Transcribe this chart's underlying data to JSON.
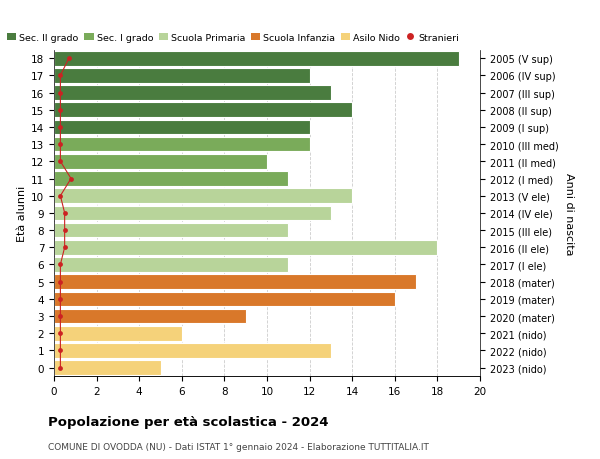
{
  "ages": [
    18,
    17,
    16,
    15,
    14,
    13,
    12,
    11,
    10,
    9,
    8,
    7,
    6,
    5,
    4,
    3,
    2,
    1,
    0
  ],
  "years": [
    "2005 (V sup)",
    "2006 (IV sup)",
    "2007 (III sup)",
    "2008 (II sup)",
    "2009 (I sup)",
    "2010 (III med)",
    "2011 (II med)",
    "2012 (I med)",
    "2013 (V ele)",
    "2014 (IV ele)",
    "2015 (III ele)",
    "2016 (II ele)",
    "2017 (I ele)",
    "2018 (mater)",
    "2019 (mater)",
    "2020 (mater)",
    "2021 (nido)",
    "2022 (nido)",
    "2023 (nido)"
  ],
  "values": [
    19,
    12,
    13,
    14,
    12,
    12,
    10,
    11,
    14,
    13,
    11,
    18,
    11,
    17,
    16,
    9,
    6,
    13,
    5
  ],
  "bar_colors": [
    "#4a7c3f",
    "#4a7c3f",
    "#4a7c3f",
    "#4a7c3f",
    "#4a7c3f",
    "#7aab5a",
    "#7aab5a",
    "#7aab5a",
    "#b8d49a",
    "#b8d49a",
    "#b8d49a",
    "#b8d49a",
    "#b8d49a",
    "#d9782a",
    "#d9782a",
    "#d9782a",
    "#f5d27a",
    "#f5d27a",
    "#f5d27a"
  ],
  "stranieri_x": [
    0.7,
    0.3,
    0.3,
    0.3,
    0.3,
    0.3,
    0.3,
    0.8,
    0.3,
    0.5,
    0.5,
    0.5,
    0.3,
    0.3,
    0.3,
    0.3,
    0.3,
    0.3,
    0.3
  ],
  "legend_labels": [
    "Sec. II grado",
    "Sec. I grado",
    "Scuola Primaria",
    "Scuola Infanzia",
    "Asilo Nido",
    "Stranieri"
  ],
  "legend_colors": [
    "#4a7c3f",
    "#7aab5a",
    "#b8d49a",
    "#d9782a",
    "#f5d27a",
    "#cc2222"
  ],
  "title": "Popolazione per à scolastica - 2024",
  "title_text": "Popolazione per età scolastica - 2024",
  "subtitle": "COMUNE DI OVODDA (NU) - Dati ISTAT 1° gennaio 2024 - Elaborazione TUTTITALIA.IT",
  "ylabel": "Età alunni",
  "ylabel2": "Anni di nascita",
  "xlabel_vals": [
    0,
    2,
    4,
    6,
    8,
    10,
    12,
    14,
    16,
    18,
    20
  ],
  "xlim": [
    0,
    20
  ],
  "bg_color": "#ffffff",
  "grid_color": "#cccccc"
}
